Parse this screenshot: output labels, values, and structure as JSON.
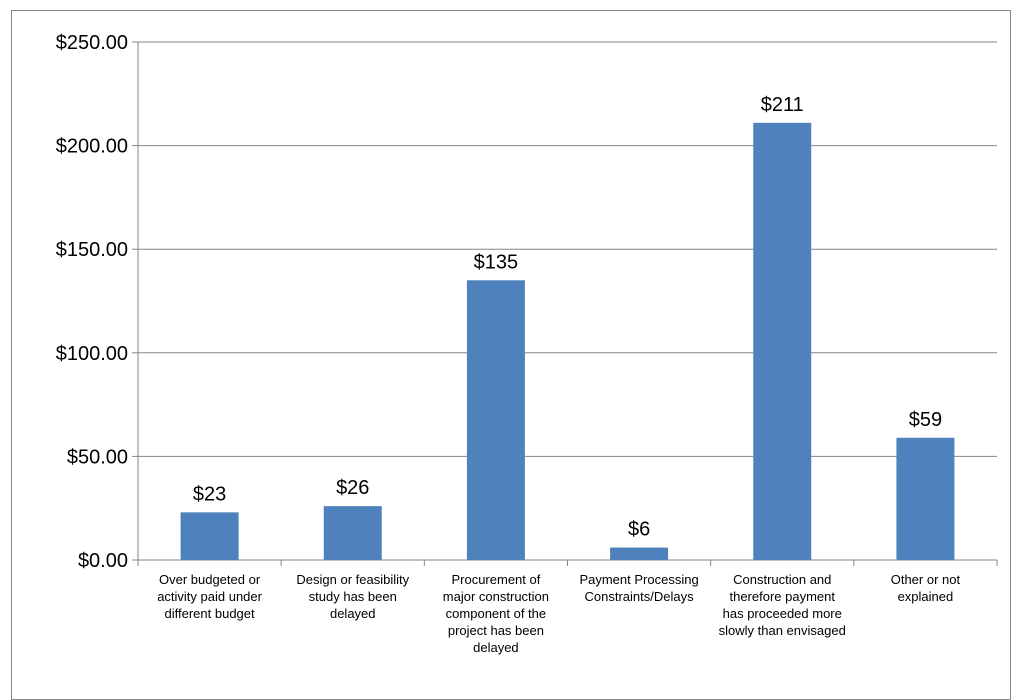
{
  "chart_data": {
    "type": "bar",
    "categories": [
      "Over budgeted or activity paid under different budget",
      "Design or feasibility study has been delayed",
      "Procurement of major construction component of the project has been delayed",
      "Payment Processing Constraints/Delays",
      "Construction and therefore payment has proceeded more slowly than envisaged",
      "Other or not explained"
    ],
    "category_lines": [
      [
        "Over budgeted or",
        "activity paid under",
        "different budget"
      ],
      [
        "Design or feasibility",
        "study has been",
        "delayed"
      ],
      [
        "Procurement of",
        "major construction",
        "component of the",
        "project has been",
        "delayed"
      ],
      [
        "Payment Processing",
        "Constraints/Delays"
      ],
      [
        "Construction and",
        "therefore payment",
        "has proceeded more",
        "slowly than envisaged"
      ],
      [
        "Other or not",
        "explained"
      ]
    ],
    "values": [
      23,
      26,
      135,
      6,
      211,
      59
    ],
    "data_labels": [
      "$23",
      "$26",
      "$135",
      "$6",
      "$211",
      "$59"
    ],
    "y_ticks": [
      "$0.00",
      "$50.00",
      "$100.00",
      "$150.00",
      "$200.00",
      "$250.00"
    ],
    "ylim": [
      0,
      250
    ],
    "grid": true,
    "bar_color": "#4F81BD",
    "grid_color": "#868686"
  }
}
